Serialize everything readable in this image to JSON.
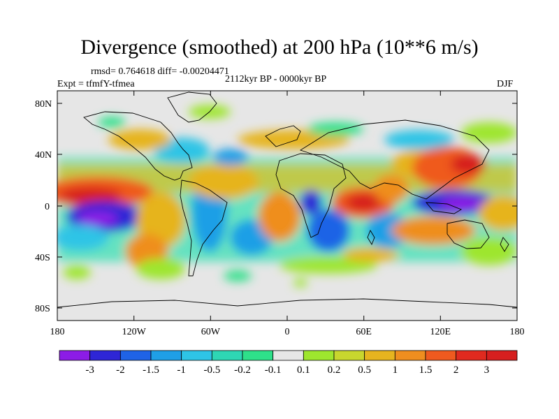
{
  "title": "Divergence (smoothed) at 200 hPa (10**6 m/s)",
  "stats_line": "rmsd= 0.764618 diff= -0.00204471",
  "expt_line": "Expt = tfmfY-tfmea",
  "period_line": "2112kyr BP - 0000kyr BP",
  "season": "DJF",
  "colors": {
    "land_outline": "#000000",
    "near_zero_fill": "#e6e6e6"
  },
  "map": {
    "projection": "cylindrical equidistant",
    "lon_range": [
      -180,
      180
    ],
    "lat_range": [
      -90,
      90
    ],
    "lon_tick_labels": [
      "180",
      "120W",
      "60W",
      "0",
      "60E",
      "120E",
      "180"
    ],
    "lat_tick_labels": [
      "80N",
      "40N",
      "0",
      "40S",
      "80S"
    ]
  },
  "colorbar": {
    "labels": [
      "-3",
      "-2",
      "-1.5",
      "-1",
      "-0.5",
      "-0.2",
      "-0.1",
      "0.1",
      "0.2",
      "0.5",
      "1",
      "1.5",
      "2",
      "3"
    ],
    "colors": [
      "#8c1ce6",
      "#2e26d6",
      "#1f63e6",
      "#1f9fe6",
      "#2ec4e6",
      "#2ed6b4",
      "#2ee08a",
      "#e6e6e6",
      "#9ee62e",
      "#c8d62e",
      "#e6b41f",
      "#ef8e1f",
      "#ef5a1f",
      "#e02a1f",
      "#d61f1f"
    ]
  }
}
